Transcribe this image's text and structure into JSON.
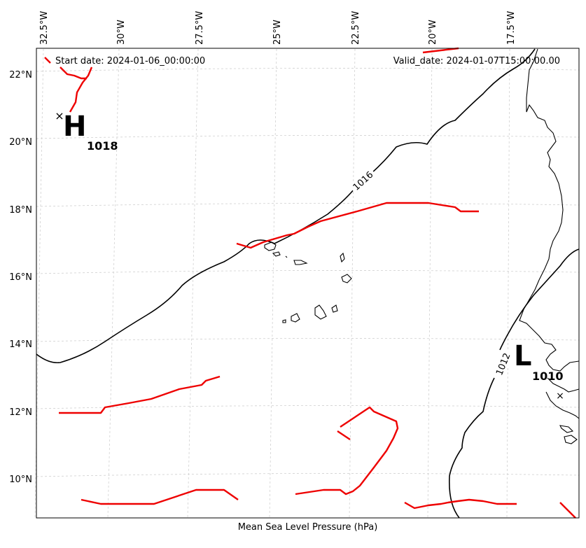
{
  "header": {
    "start": "Start date: 2024-01-06_00:00:00",
    "valid": "Valid_date: 2024-01-07T15:00:00.00"
  },
  "xlabel": "Mean Sea Level Pressure (hPa)",
  "lon_ticks": [
    "32.5°W",
    "30°W",
    "27.5°W",
    "25°W",
    "22.5°W",
    "20°W",
    "17.5°W"
  ],
  "lat_ticks": [
    "22°N",
    "20°N",
    "18°N",
    "16°N",
    "14°N",
    "12°N",
    "10°N"
  ],
  "isobars": [
    {
      "label": "1016"
    },
    {
      "label": "1012"
    }
  ],
  "centers": [
    {
      "type": "H",
      "value": "1018"
    },
    {
      "type": "L",
      "value": "1010"
    }
  ],
  "colors": {
    "front": "#ee0000",
    "isobar": "#000000",
    "grid": "#cccccc"
  }
}
